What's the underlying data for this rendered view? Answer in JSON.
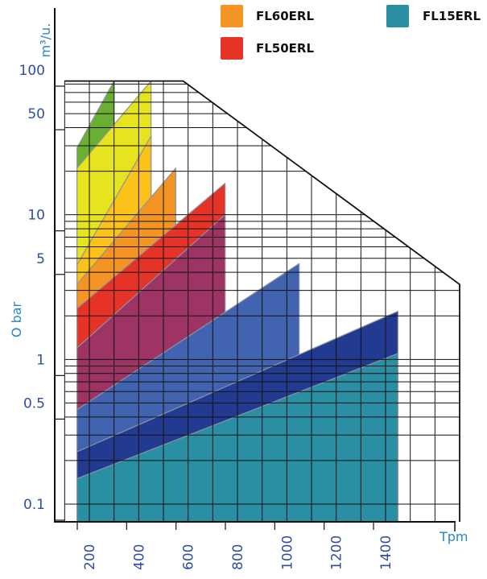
{
  "chart_data": {
    "type": "area",
    "title": "",
    "xlabel": "Tpm",
    "ylabel": "m³/u.",
    "ylabel_secondary": "O bar",
    "x_ticks": [
      "200",
      "400",
      "600",
      "800",
      "1000",
      "1200",
      "1400"
    ],
    "y_ticks": [
      "100",
      "50",
      "10",
      "5",
      "1",
      "0.5",
      "0.1"
    ],
    "y_scale": "log",
    "grid": true,
    "legend_position": "top",
    "legend": [
      {
        "label": "FL60ERL",
        "color": "#f39423"
      },
      {
        "label": "FL15ERL",
        "color": "#2a8fa3"
      },
      {
        "label": "FL50ERL",
        "color": "#e53427"
      }
    ],
    "envelope": [
      {
        "x": 100,
        "y": 84
      },
      {
        "x": 580,
        "y": 84
      },
      {
        "x": 1700,
        "y": 3.3
      },
      {
        "x": 1700,
        "y": 0.065
      }
    ],
    "series": [
      {
        "color": "#6bae34",
        "start": {
          "x": 150,
          "y": 29
        },
        "end": {
          "x": 300,
          "y": 84
        }
      },
      {
        "color": "#e6e31f",
        "start": {
          "x": 150,
          "y": 21
        },
        "end": {
          "x": 450,
          "y": 84
        }
      },
      {
        "color": "#fbc21a",
        "start": {
          "x": 150,
          "y": 4.5
        },
        "end": {
          "x": 450,
          "y": 35
        }
      },
      {
        "color": "#f39423",
        "start": {
          "x": 150,
          "y": 3.3
        },
        "end": {
          "x": 550,
          "y": 21
        }
      },
      {
        "color": "#e53427",
        "start": {
          "x": 150,
          "y": 2.25
        },
        "end": {
          "x": 750,
          "y": 16.5
        }
      },
      {
        "color": "#9d3464",
        "start": {
          "x": 150,
          "y": 1.2
        },
        "end": {
          "x": 750,
          "y": 10
        }
      },
      {
        "color": "#4264b0",
        "start": {
          "x": 150,
          "y": 0.45
        },
        "end": {
          "x": 1050,
          "y": 4.6
        }
      },
      {
        "color": "#223a8f",
        "start": {
          "x": 150,
          "y": 0.23
        },
        "end": {
          "x": 1450,
          "y": 2.15
        }
      },
      {
        "color": "#2a8fa3",
        "start": {
          "x": 150,
          "y": 0.15
        },
        "end": {
          "x": 1450,
          "y": 1.1
        }
      }
    ]
  }
}
